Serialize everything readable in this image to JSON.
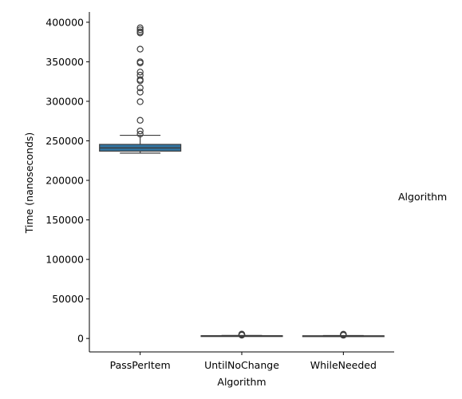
{
  "chart_data": {
    "type": "box",
    "title": "",
    "xlabel": "Algorithm",
    "ylabel": "Time (nanoseconds)",
    "legend_title": "Algorithm",
    "legend_placement": "right",
    "grid": false,
    "ylim": [
      -17000,
      413000
    ],
    "yticks": [
      0,
      50000,
      100000,
      150000,
      200000,
      250000,
      300000,
      350000,
      400000
    ],
    "ytick_labels": [
      "0",
      "50000",
      "100000",
      "150000",
      "200000",
      "250000",
      "300000",
      "350000",
      "400000"
    ],
    "categories": [
      "PassPerItem",
      "UntilNoChange",
      "WhileNeeded"
    ],
    "box_color": "#3274a1",
    "line_color": "#3d3d3d",
    "boxes": [
      {
        "category": "PassPerItem",
        "whisker_low": 234500,
        "q1": 237000,
        "median": 241000,
        "q3": 245500,
        "whisker_high": 257000,
        "outliers": [
          258500,
          262500,
          276000,
          299500,
          311500,
          317000,
          326000,
          327500,
          333000,
          337000,
          348500,
          350000,
          366000,
          386500,
          388000,
          390500,
          393000
        ]
      },
      {
        "category": "UntilNoChange",
        "whisker_low": 2800,
        "q1": 3000,
        "median": 3200,
        "q3": 3500,
        "whisker_high": 3800,
        "outliers": [
          4200,
          4500,
          4800,
          5200,
          5500
        ]
      },
      {
        "category": "WhileNeeded",
        "whisker_low": 2700,
        "q1": 2900,
        "median": 3100,
        "q3": 3400,
        "whisker_high": 3700,
        "outliers": [
          4100,
          4400,
          4700,
          5000,
          5400
        ]
      }
    ]
  }
}
